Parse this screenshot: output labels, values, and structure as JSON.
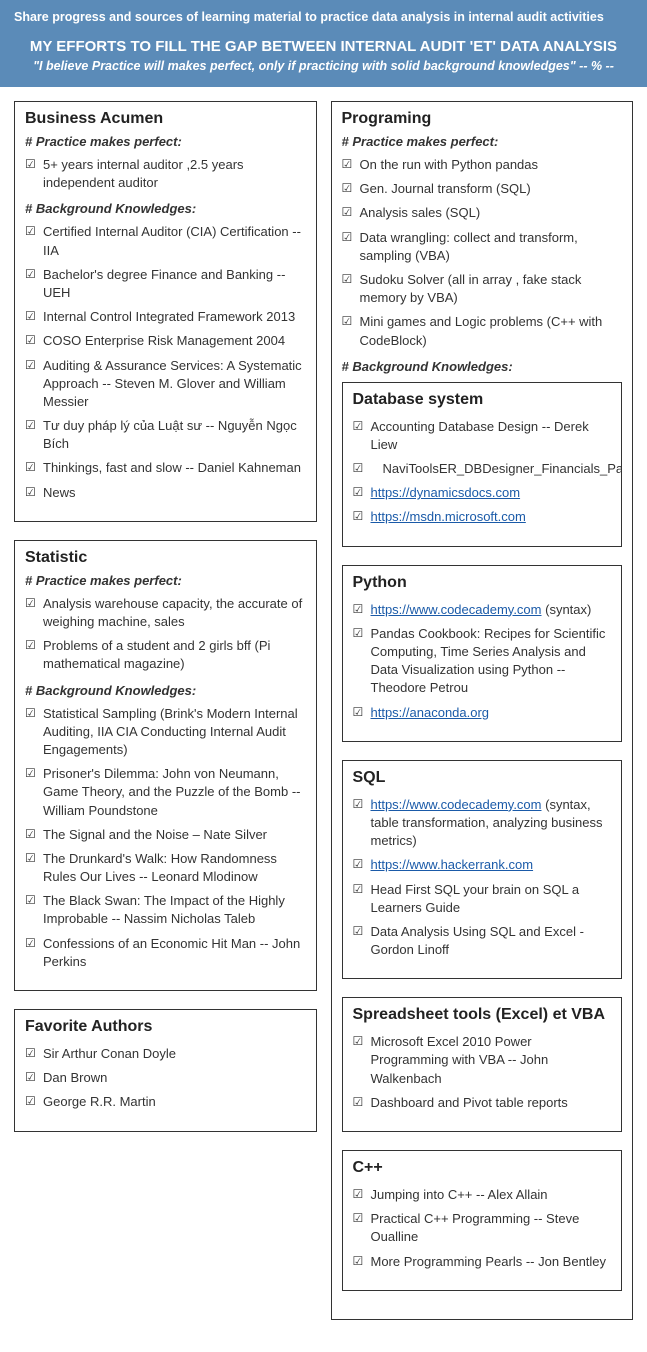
{
  "banner": {
    "subtitle": "Share progress and sources of learning material to practice data analysis in internal audit activities",
    "title": "MY EFFORTS TO FILL THE GAP BETWEEN INTERNAL AUDIT 'ET' DATA ANALYSIS",
    "quote": "\"I believe Practice will makes perfect, only if practicing with solid background knowledges\" -- % --"
  },
  "left": {
    "business": {
      "title": "Business Acumen",
      "practice_head": "# Practice makes perfect:",
      "practice": [
        "5+ years internal auditor ,2.5 years independent auditor"
      ],
      "bg_head": "# Background Knowledges:",
      "bg": [
        "Certified Internal Auditor (CIA) Certification -- IIA",
        "Bachelor's degree Finance and Banking -- UEH",
        "Internal Control Integrated Framework 2013",
        "COSO Enterprise Risk Management 2004",
        "Auditing & Assurance Services: A Systematic Approach -- Steven M. Glover and William Messier",
        "Tư duy pháp lý của Luật sư -- Nguyễn Ngọc Bích",
        "Thinkings,  fast and slow -- Daniel Kahneman",
        "News"
      ]
    },
    "statistic": {
      "title": "Statistic",
      "practice_head": "# Practice makes perfect:",
      "practice": [
        "Analysis warehouse capacity, the accurate of weighing machine, sales",
        "Problems of a student and 2 girls bff (Pi mathematical magazine)"
      ],
      "bg_head": "# Background Knowledges:",
      "bg": [
        "Statistical Sampling (Brink's Modern Internal Auditing, IIA CIA Conducting Internal Audit Engagements)",
        "Prisoner's Dilemma: John von Neumann, Game Theory, and the Puzzle of the Bomb -- William Poundstone",
        "The Signal and the Noise – Nate Silver",
        "The Drunkard's Walk: How Randomness Rules Our Lives -- Leonard Mlodinow",
        "The Black Swan: The Impact of the Highly Improbable -- Nassim Nicholas Taleb",
        "Confessions of an Economic Hit Man -- John Perkins"
      ]
    },
    "authors": {
      "title": "Favorite Authors",
      "items": [
        "Sir Arthur Conan Doyle",
        "Dan Brown",
        "George R.R. Martin"
      ]
    }
  },
  "right": {
    "prog": {
      "title": "Programing",
      "practice_head": "# Practice makes perfect:",
      "practice": [
        "On the run with Python pandas",
        "Gen. Journal transform (SQL)",
        "Analysis sales (SQL)",
        "Data wrangling: collect and transform, sampling (VBA)",
        "Sudoku Solver (all in array , fake stack memory by VBA)",
        "Mini games and Logic problems (C++ with CodeBlock)"
      ],
      "bg_head": "# Background Knowledges:",
      "db": {
        "title": "Database system",
        "i0": "Accounting Database Design -- Derek Liew",
        "i1": "NaviToolsER_DBDesigner_Financials_Package_Lite",
        "i2": "https://dynamicsdocs.com",
        "i3": "https://msdn.microsoft.com"
      },
      "python": {
        "title": "Python",
        "i0": "https://www.codecademy.com",
        "i0s": " (syntax)",
        "i1": "Pandas Cookbook: Recipes for Scientific Computing, Time Series Analysis and Data Visualization using Python -- Theodore Petrou",
        "i2": "https://anaconda.org"
      },
      "sql": {
        "title": "SQL",
        "i0": "https://www.codecademy.com",
        "i0s": " (syntax, table transformation, analyzing business metrics)",
        "i1": "https://www.hackerrank.com",
        "i2": "Head First SQL your brain on SQL a Learners Guide",
        "i3": "Data Analysis Using SQL and Excel - Gordon Linoff"
      },
      "excel": {
        "title": "Spreadsheet tools (Excel) et VBA",
        "i0": "Microsoft Excel 2010 Power Programming with VBA -- John Walkenbach",
        "i1": "Dashboard and Pivot table reports"
      },
      "cpp": {
        "title": "C++",
        "i0": "Jumping into C++ -- Alex Allain",
        "i1": "Practical C++ Programming -- Steve Oualline",
        "i2": "More Programming Pearls -- Jon Bentley"
      }
    }
  }
}
